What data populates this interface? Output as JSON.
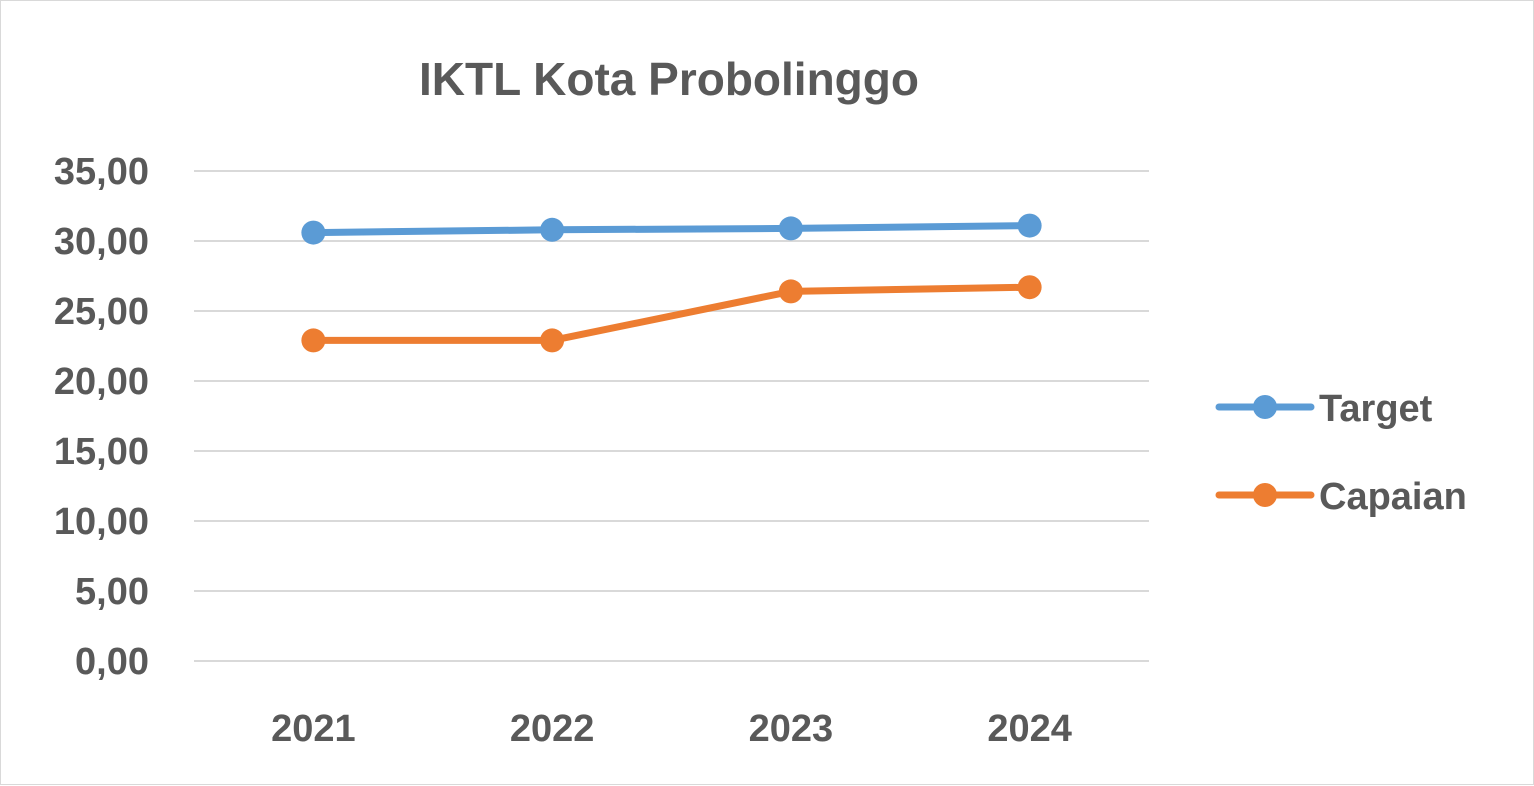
{
  "chart_data": {
    "type": "line",
    "title": "IKTL Kota Probolinggo",
    "xlabel": "",
    "ylabel": "",
    "categories": [
      "2021",
      "2022",
      "2023",
      "2024"
    ],
    "ylim": [
      0,
      35
    ],
    "ytick_values": [
      0,
      5,
      10,
      15,
      20,
      25,
      30,
      35
    ],
    "ytick_labels": [
      "0,00",
      "5,00",
      "10,00",
      "15,00",
      "20,00",
      "25,00",
      "30,00",
      "35,00"
    ],
    "grid": true,
    "legend_position": "right",
    "series": [
      {
        "name": "Target",
        "color": "#5b9bd5",
        "values": [
          30.6,
          30.8,
          30.9,
          31.1
        ]
      },
      {
        "name": "Capaian",
        "color": "#ed7d31",
        "values": [
          22.9,
          22.9,
          26.4,
          26.7
        ]
      }
    ]
  }
}
